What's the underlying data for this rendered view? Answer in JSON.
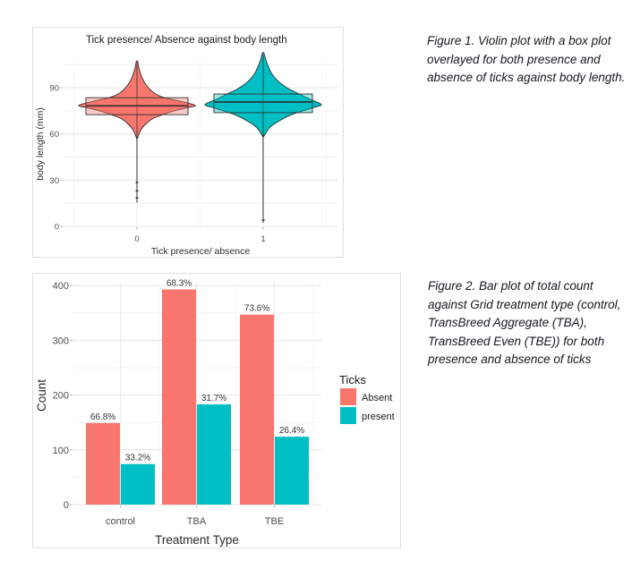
{
  "figure1": {
    "caption_lines": [
      "Figure 1. Violin plot with a box plot",
      "overlayed for both presence and",
      "absence of ticks against body length."
    ]
  },
  "figure2": {
    "caption_lines": [
      "Figure 2. Bar plot of total count",
      "against Grid treatment type (control,",
      "TransBreed Aggregate (TBA),",
      "TransBreed Even (TBE)) for both",
      "presence and absence of ticks"
    ]
  },
  "chart_data": [
    {
      "type": "violin",
      "title": "Tick presence/ Absence against body length",
      "xlabel": "Tick presence/ absence",
      "ylabel": "body length (mm)",
      "categories": [
        "0",
        "1"
      ],
      "yticks": [
        0,
        30,
        60,
        90
      ],
      "yminor": [
        15,
        45,
        75,
        105
      ],
      "ylim": [
        0,
        112
      ],
      "grid": true,
      "groups": [
        {
          "category": "0",
          "color": "#F8766D",
          "median": 78.2,
          "q1": 72.5,
          "q3": 83.5,
          "min": 15.5,
          "max": 107,
          "outliers": [
            28.5,
            23,
            18.5
          ],
          "density_profile": [
            [
              107,
              0.8
            ],
            [
              103,
              2
            ],
            [
              100,
              3.5
            ],
            [
              96,
              6
            ],
            [
              92,
              10
            ],
            [
              88,
              16
            ],
            [
              85,
              24
            ],
            [
              83,
              34
            ],
            [
              81,
              50
            ],
            [
              78.5,
              65
            ],
            [
              77,
              56
            ],
            [
              75,
              42
            ],
            [
              72.5,
              29
            ],
            [
              70,
              18
            ],
            [
              67,
              11
            ],
            [
              64,
              6
            ],
            [
              61,
              3
            ],
            [
              58,
              1
            ]
          ]
        },
        {
          "category": "1",
          "color": "#00BFC4",
          "median": 80.7,
          "q1": 73.8,
          "q3": 85.9,
          "min": 2.3,
          "max": 112.5,
          "outliers": [
            4
          ],
          "density_profile": [
            [
              112.5,
              0.8
            ],
            [
              108,
              3
            ],
            [
              103.4,
              6
            ],
            [
              98.7,
              10
            ],
            [
              94,
              17
            ],
            [
              89.4,
              28
            ],
            [
              86,
              40
            ],
            [
              82.5,
              52
            ],
            [
              79,
              65
            ],
            [
              76.7,
              54
            ],
            [
              73.8,
              38
            ],
            [
              71,
              26
            ],
            [
              67.4,
              15
            ],
            [
              64,
              7
            ],
            [
              59.2,
              1.5
            ]
          ]
        }
      ]
    },
    {
      "type": "bar",
      "categories": [
        "control",
        "TBA",
        "TBE"
      ],
      "series": [
        {
          "name": "Absent",
          "color": "#F8766D",
          "values": [
            149,
            393,
            347
          ],
          "labels": [
            "66.8%",
            "68.3%",
            "73.6%"
          ]
        },
        {
          "name": "present",
          "color": "#00BFC4",
          "values": [
            74,
            183,
            124
          ],
          "labels": [
            "33.2%",
            "31.7%",
            "26.4%"
          ]
        }
      ],
      "xlabel": "Treatment Type",
      "ylabel": "Count",
      "yticks": [
        0,
        100,
        200,
        300,
        400
      ],
      "yminor": [
        50,
        150,
        250,
        350
      ],
      "ylim": [
        0,
        400
      ],
      "legend_title": "Ticks",
      "legend_position": "right",
      "grid": true
    }
  ]
}
